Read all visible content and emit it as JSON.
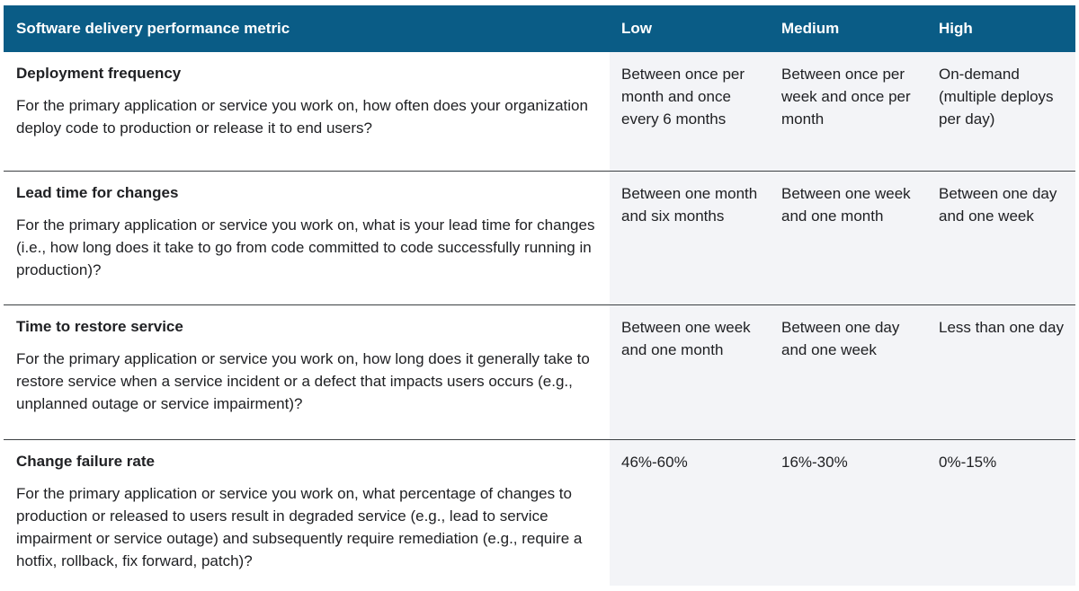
{
  "header": {
    "metric": "Software delivery performance metric",
    "low": "Low",
    "medium": "Medium",
    "high": "High"
  },
  "rows": [
    {
      "title": "Deployment frequency",
      "description": "For the primary application or service you work on, how often does your organization deploy code to production or release it to end users?",
      "low": "Between once per month and once every 6 months",
      "medium": "Between once per week and once per month",
      "high": "On-demand (multiple deploys per day)"
    },
    {
      "title": "Lead time for changes",
      "description": "For the primary application or service you work on, what is your lead time for changes (i.e., how long does it take to go from code committed to code successfully running in production)?",
      "low": "Between one month and six months",
      "medium": "Between one week and one month",
      "high": "Between one day and one week"
    },
    {
      "title": "Time to restore service",
      "description": "For the primary application or service you work on, how long does it generally take to restore service when a service incident or a defect that impacts users occurs (e.g., unplanned outage or service impairment)?",
      "low": "Between one week and one month",
      "medium": "Between one day and one week",
      "high": "Less than one day"
    },
    {
      "title": "Change failure rate",
      "description": "For the primary application or service you work on, what percentage of changes to production or released to users result in degraded service (e.g., lead to service impairment or service outage) and subsequently require remediation (e.g., require a hotfix, rollback, fix forward, patch)?",
      "low": "46%-60%",
      "medium": "16%-30%",
      "high": "0%-15%"
    }
  ]
}
